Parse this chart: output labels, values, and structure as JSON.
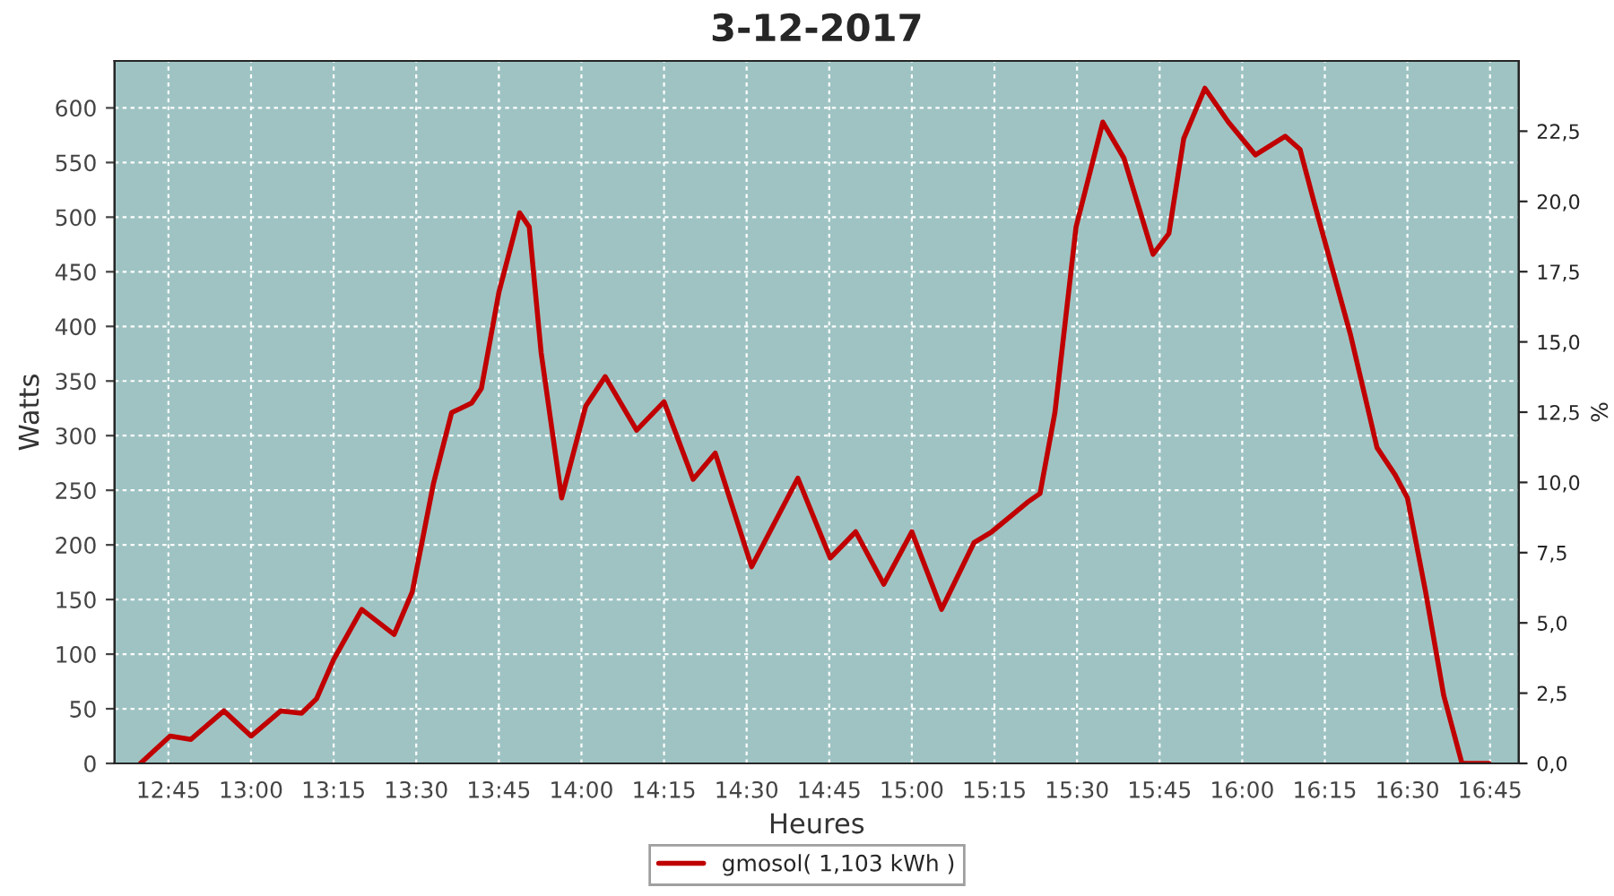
{
  "chart_data": {
    "type": "line",
    "title": "3-12-2017",
    "xlabel": "Heures",
    "ylabel": "Watts",
    "y2label": "%",
    "series": [
      {
        "name": "gmosol( 1,103 kWh )",
        "color": "#c00000",
        "x": [
          12.665,
          12.755,
          12.818,
          12.918,
          13.0,
          13.09,
          13.153,
          13.198,
          13.25,
          13.335,
          13.433,
          13.488,
          13.552,
          13.607,
          13.668,
          13.697,
          13.75,
          13.813,
          13.842,
          13.878,
          13.94,
          14.013,
          14.072,
          14.167,
          14.25,
          14.338,
          14.405,
          14.515,
          14.655,
          14.753,
          14.83,
          14.915,
          15.0,
          15.09,
          15.188,
          15.242,
          15.35,
          15.388,
          15.433,
          15.497,
          15.578,
          15.642,
          15.73,
          15.778,
          15.823,
          15.887,
          15.958,
          16.04,
          16.13,
          16.175,
          16.218,
          16.328,
          16.408,
          16.463,
          16.5,
          16.555,
          16.61,
          16.665,
          16.747
        ],
        "values": [
          0,
          25,
          22,
          48,
          25,
          48,
          46,
          59,
          95,
          141,
          118,
          157,
          256,
          321,
          330,
          343,
          431,
          504,
          491,
          376,
          243,
          327,
          354,
          305,
          331,
          260,
          284,
          180,
          261,
          188,
          212,
          164,
          212,
          141,
          202,
          212,
          239,
          247,
          321,
          491,
          587,
          554,
          466,
          485,
          572,
          618,
          587,
          557,
          574,
          562,
          513,
          392,
          289,
          264,
          243,
          157,
          62,
          0,
          0
        ]
      }
    ],
    "xlim": [
      12.587,
      16.837
    ],
    "xticks": [
      {
        "value": 12.75,
        "label": "12:45"
      },
      {
        "value": 13.0,
        "label": "13:00"
      },
      {
        "value": 13.25,
        "label": "13:15"
      },
      {
        "value": 13.5,
        "label": "13:30"
      },
      {
        "value": 13.75,
        "label": "13:45"
      },
      {
        "value": 14.0,
        "label": "14:00"
      },
      {
        "value": 14.25,
        "label": "14:15"
      },
      {
        "value": 14.5,
        "label": "14:30"
      },
      {
        "value": 14.75,
        "label": "14:45"
      },
      {
        "value": 15.0,
        "label": "15:00"
      },
      {
        "value": 15.25,
        "label": "15:15"
      },
      {
        "value": 15.5,
        "label": "15:30"
      },
      {
        "value": 15.75,
        "label": "15:45"
      },
      {
        "value": 16.0,
        "label": "16:00"
      },
      {
        "value": 16.25,
        "label": "16:15"
      },
      {
        "value": 16.5,
        "label": "16:30"
      },
      {
        "value": 16.75,
        "label": "16:45"
      }
    ],
    "ylim": [
      0,
      643
    ],
    "yticks": [
      0,
      50,
      100,
      150,
      200,
      250,
      300,
      350,
      400,
      450,
      500,
      550,
      600
    ],
    "y2lim": [
      0,
      25
    ],
    "y2ticks": [
      {
        "value": 0,
        "label": "0,0"
      },
      {
        "value": 2.5,
        "label": "2,5"
      },
      {
        "value": 5,
        "label": "5,0"
      },
      {
        "value": 7.5,
        "label": "7,5"
      },
      {
        "value": 10,
        "label": "10,0"
      },
      {
        "value": 12.5,
        "label": "12,5"
      },
      {
        "value": 15,
        "label": "15,0"
      },
      {
        "value": 17.5,
        "label": "17,5"
      },
      {
        "value": 20,
        "label": "20,0"
      },
      {
        "value": 22.5,
        "label": "22,5"
      }
    ],
    "grid": true,
    "legend": "bottom",
    "marker": "none",
    "line_style": "solid"
  }
}
